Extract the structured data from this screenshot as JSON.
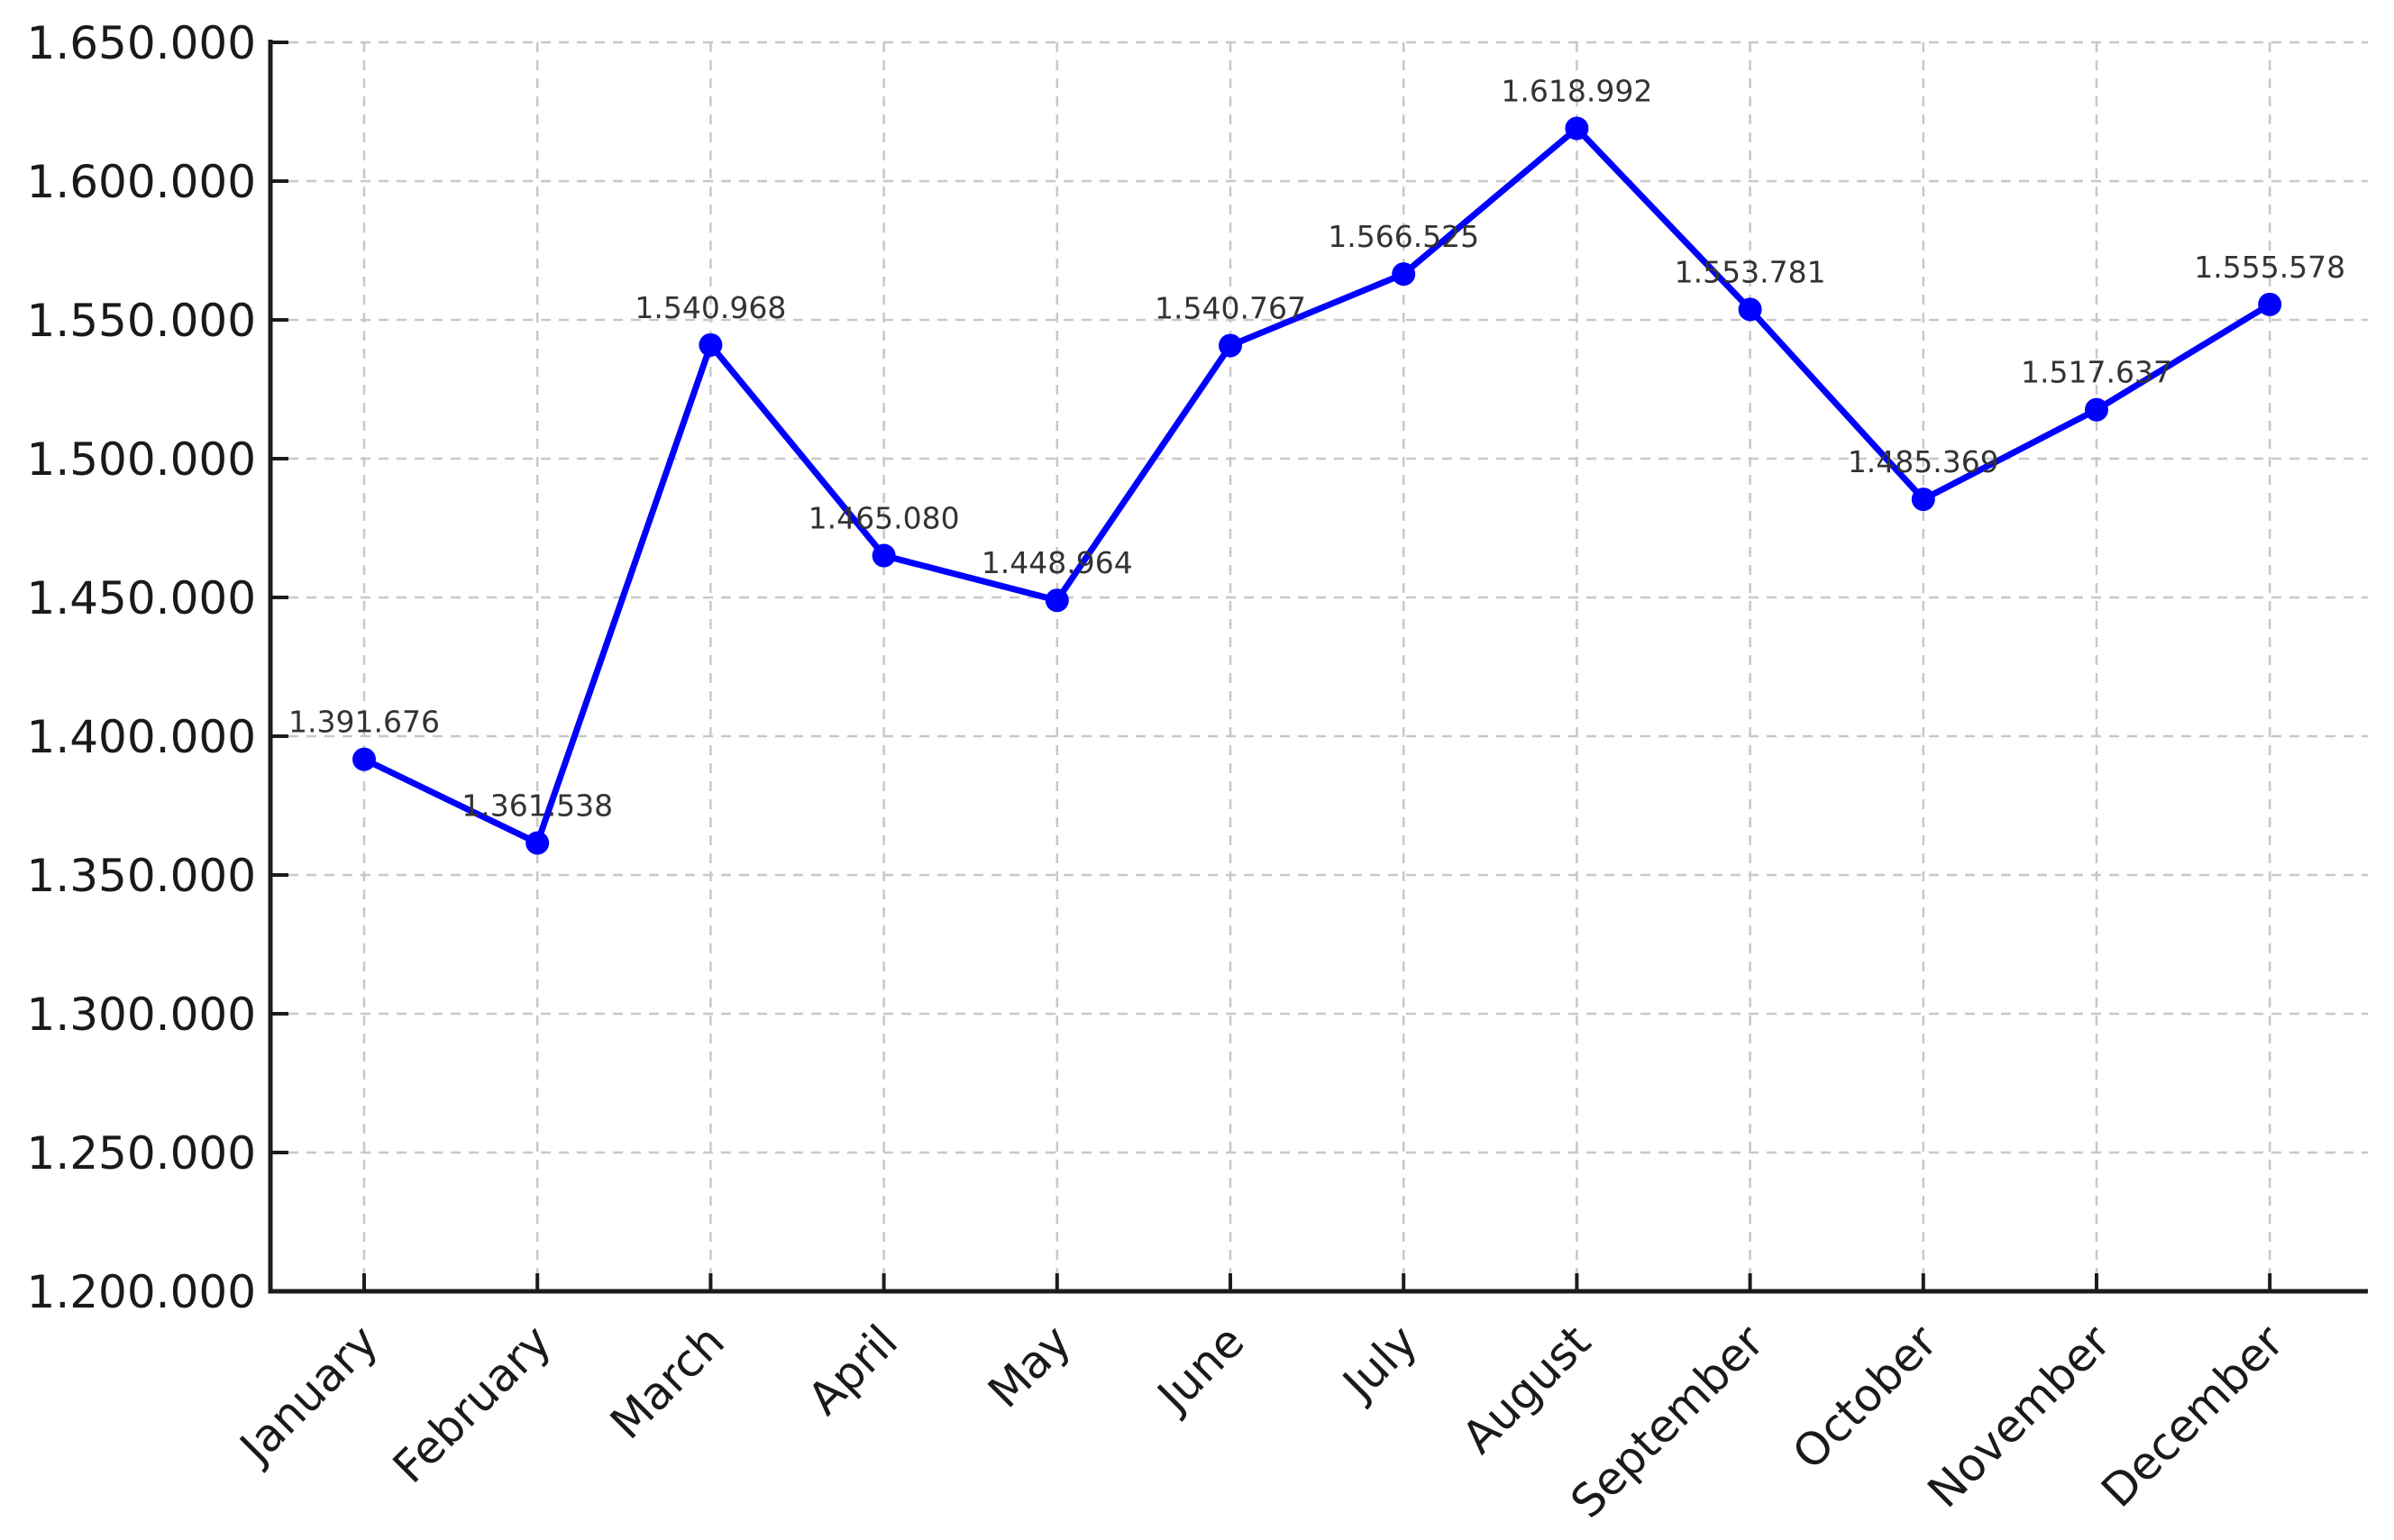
{
  "chart_data": {
    "type": "line",
    "title": "",
    "xlabel": "",
    "ylabel": "",
    "categories": [
      "January",
      "February",
      "March",
      "April",
      "May",
      "June",
      "July",
      "August",
      "September",
      "October",
      "November",
      "December"
    ],
    "series": [
      {
        "name": "monthly-values",
        "values": [
          1391676,
          1361538,
          1540968,
          1465080,
          1448964,
          1540767,
          1566525,
          1618992,
          1553781,
          1485369,
          1517637,
          1555578
        ]
      }
    ],
    "value_labels": [
      "1.391.676",
      "1.361.538",
      "1.540.968",
      "1.465.080",
      "1.448.964",
      "1.540.767",
      "1.566.525",
      "1.618.992",
      "1.553.781",
      "1.485.369",
      "1.517.637",
      "1.555.578"
    ],
    "y_tick_labels": [
      "1.200.000",
      "1.250.000",
      "1.300.000",
      "1.350.000",
      "1.400.000",
      "1.450.000",
      "1.500.000",
      "1.550.000",
      "1.600.000",
      "1.650.000"
    ],
    "ylim": [
      1200000,
      1650000
    ],
    "y_tick_step": 50000,
    "x_tick_rotation_deg": 45,
    "grid": true,
    "grid_style": "dashed",
    "legend": "none",
    "colors": {
      "line": "#0000ff",
      "marker": "#0000ff",
      "grid": "#c8c8c8",
      "axis": "#1c1c1c",
      "tick_text": "#1a1a1a",
      "point_label_text": "#333333",
      "background": "#ffffff"
    }
  }
}
